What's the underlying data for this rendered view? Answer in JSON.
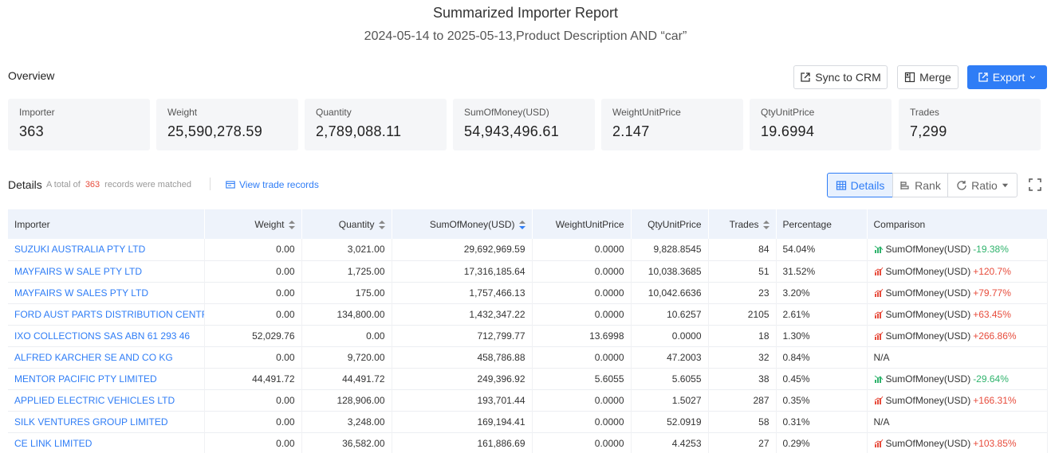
{
  "report": {
    "title": "Summarized Importer Report",
    "subtitle": "2024-05-14 to 2025-05-13,Product Description AND “car”"
  },
  "overview": {
    "label": "Overview",
    "buttons": {
      "sync": "Sync to CRM",
      "merge": "Merge",
      "export": "Export"
    },
    "stats": [
      {
        "label": "Importer",
        "value": "363"
      },
      {
        "label": "Weight",
        "value": "25,590,278.59"
      },
      {
        "label": "Quantity",
        "value": "2,789,088.11"
      },
      {
        "label": "SumOfMoney(USD)",
        "value": "54,943,496.61"
      },
      {
        "label": "WeightUnitPrice",
        "value": "2.147"
      },
      {
        "label": "QtyUnitPrice",
        "value": "19.6994"
      },
      {
        "label": "Trades",
        "value": "7,299"
      }
    ]
  },
  "details": {
    "label": "Details",
    "total_prefix": "A total of",
    "total_count": "363",
    "total_suffix": "records were matched",
    "view_records": "View trade records",
    "views": {
      "details": "Details",
      "rank": "Rank",
      "ratio": "Ratio"
    }
  },
  "table": {
    "columns": [
      "Importer",
      "Weight",
      "Quantity",
      "SumOfMoney(USD)",
      "WeightUnitPrice",
      "QtyUnitPrice",
      "Trades",
      "Percentage",
      "Comparison"
    ],
    "rows": [
      {
        "importer": "SUZUKI AUSTRALIA PTY LTD",
        "weight": "0.00",
        "quantity": "3,021.00",
        "money": "29,692,969.59",
        "wup": "0.0000",
        "qup": "9,828.8545",
        "trades": "84",
        "pct": "54.04%",
        "cmp_label": "SumOfMoney(USD)",
        "cmp_value": "-19.38%",
        "cmp_dir": "down"
      },
      {
        "importer": "MAYFAIRS W SALE PTY LTD",
        "weight": "0.00",
        "quantity": "1,725.00",
        "money": "17,316,185.64",
        "wup": "0.0000",
        "qup": "10,038.3685",
        "trades": "51",
        "pct": "31.52%",
        "cmp_label": "SumOfMoney(USD)",
        "cmp_value": "+120.7%",
        "cmp_dir": "up"
      },
      {
        "importer": "MAYFAIRS W SALES PTY LTD",
        "weight": "0.00",
        "quantity": "175.00",
        "money": "1,757,466.13",
        "wup": "0.0000",
        "qup": "10,042.6636",
        "trades": "23",
        "pct": "3.20%",
        "cmp_label": "SumOfMoney(USD)",
        "cmp_value": "+79.77%",
        "cmp_dir": "up"
      },
      {
        "importer": "FORD AUST PARTS DISTRIBUTION CENTR",
        "weight": "0.00",
        "quantity": "134,800.00",
        "money": "1,432,347.22",
        "wup": "0.0000",
        "qup": "10.6257",
        "trades": "2105",
        "pct": "2.61%",
        "cmp_label": "SumOfMoney(USD)",
        "cmp_value": "+63.45%",
        "cmp_dir": "up"
      },
      {
        "importer": "IXO COLLECTIONS SAS ABN 61 293 46",
        "weight": "52,029.76",
        "quantity": "0.00",
        "money": "712,799.77",
        "wup": "13.6998",
        "qup": "0.0000",
        "trades": "18",
        "pct": "1.30%",
        "cmp_label": "SumOfMoney(USD)",
        "cmp_value": "+266.86%",
        "cmp_dir": "up"
      },
      {
        "importer": "ALFRED KARCHER SE AND CO KG",
        "weight": "0.00",
        "quantity": "9,720.00",
        "money": "458,786.88",
        "wup": "0.0000",
        "qup": "47.2003",
        "trades": "32",
        "pct": "0.84%",
        "cmp_label": "N/A",
        "cmp_value": "",
        "cmp_dir": "none"
      },
      {
        "importer": "MENTOR PACIFIC PTY LIMITED",
        "weight": "44,491.72",
        "quantity": "44,491.72",
        "money": "249,396.92",
        "wup": "5.6055",
        "qup": "5.6055",
        "trades": "38",
        "pct": "0.45%",
        "cmp_label": "SumOfMoney(USD)",
        "cmp_value": "-29.64%",
        "cmp_dir": "down"
      },
      {
        "importer": "APPLIED ELECTRIC VEHICLES LTD",
        "weight": "0.00",
        "quantity": "128,906.00",
        "money": "193,701.44",
        "wup": "0.0000",
        "qup": "1.5027",
        "trades": "287",
        "pct": "0.35%",
        "cmp_label": "SumOfMoney(USD)",
        "cmp_value": "+166.31%",
        "cmp_dir": "up"
      },
      {
        "importer": "SILK VENTURES GROUP LIMITED",
        "weight": "0.00",
        "quantity": "3,248.00",
        "money": "169,194.41",
        "wup": "0.0000",
        "qup": "52.0919",
        "trades": "58",
        "pct": "0.31%",
        "cmp_label": "N/A",
        "cmp_value": "",
        "cmp_dir": "none"
      },
      {
        "importer": "CE LINK LIMITED",
        "weight": "0.00",
        "quantity": "36,582.00",
        "money": "161,886.69",
        "wup": "0.0000",
        "qup": "4.4253",
        "trades": "27",
        "pct": "0.29%",
        "cmp_label": "SumOfMoney(USD)",
        "cmp_value": "+103.85%",
        "cmp_dir": "up"
      }
    ]
  },
  "colors": {
    "accent": "#2f7df6",
    "up": "#e74c3c",
    "down": "#2fb36c",
    "count": "#e74c3c"
  }
}
